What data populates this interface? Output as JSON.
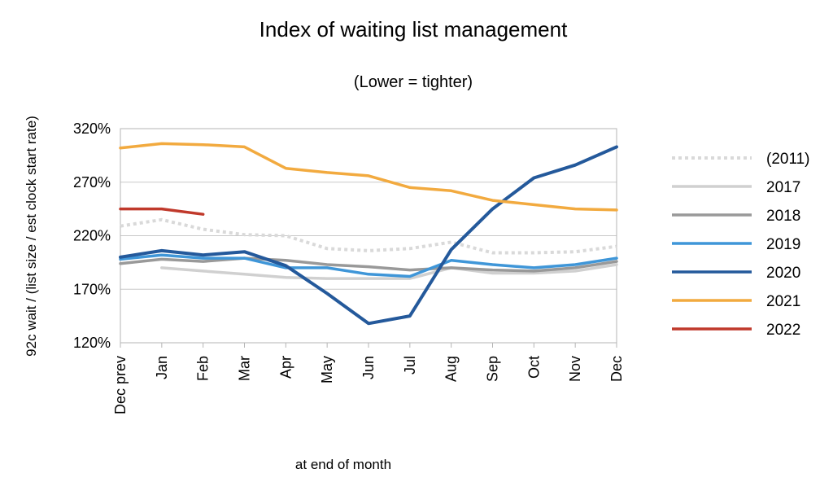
{
  "chart_data": {
    "type": "line",
    "title": "Index of waiting list management",
    "subtitle": "(Lower = tighter)",
    "xlabel": "at end of month",
    "ylabel": "92c wait / (list size / est clock start rate)",
    "categories": [
      "Dec prev",
      "Jan",
      "Feb",
      "Mar",
      "Apr",
      "May",
      "Jun",
      "Jul",
      "Aug",
      "Sep",
      "Oct",
      "Nov",
      "Dec"
    ],
    "ylim": [
      120,
      320
    ],
    "yticks": [
      120,
      170,
      220,
      270,
      320
    ],
    "ytick_suffix": "%",
    "grid": "horizontal",
    "legend_position": "right",
    "series": [
      {
        "name": "(2011)",
        "color": "#d9d9d9",
        "dashed": true,
        "values": [
          229,
          235,
          226,
          221,
          220,
          208,
          206,
          208,
          214,
          204,
          204,
          205,
          210
        ]
      },
      {
        "name": "2017",
        "color": "#d0d0d0",
        "dashed": false,
        "values": [
          null,
          190,
          187,
          184,
          181,
          180,
          180,
          180,
          190,
          185,
          185,
          187,
          193
        ]
      },
      {
        "name": "2018",
        "color": "#999999",
        "dashed": false,
        "values": [
          194,
          198,
          196,
          199,
          197,
          193,
          191,
          188,
          190,
          188,
          187,
          190,
          196
        ]
      },
      {
        "name": "2019",
        "color": "#3f96d8",
        "dashed": false,
        "values": [
          198,
          202,
          199,
          199,
          190,
          190,
          184,
          182,
          197,
          193,
          190,
          193,
          199
        ]
      },
      {
        "name": "2020",
        "color": "#24599b",
        "dashed": false,
        "values": [
          200,
          206,
          202,
          205,
          192,
          166,
          138,
          145,
          207,
          245,
          274,
          286,
          303
        ]
      },
      {
        "name": "2021",
        "color": "#f2aa3f",
        "dashed": false,
        "values": [
          302,
          306,
          305,
          303,
          283,
          279,
          276,
          265,
          262,
          253,
          249,
          245,
          244
        ]
      },
      {
        "name": "2022",
        "color": "#c0392b",
        "dashed": false,
        "values": [
          245,
          245,
          240,
          null,
          null,
          null,
          null,
          null,
          null,
          null,
          null,
          null,
          null
        ]
      }
    ]
  }
}
